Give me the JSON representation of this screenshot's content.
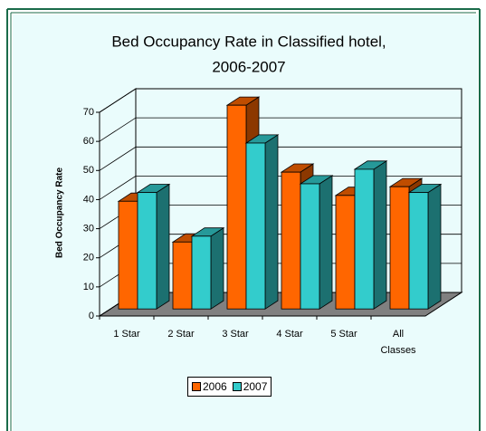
{
  "chart_data": {
    "type": "bar3d",
    "title": [
      "Bed Occupancy Rate in Classified hotel,",
      "2006-2007"
    ],
    "y_label": "Bed Occupancy Rate",
    "categories": [
      "1 Star",
      "2 Star",
      "3 Star",
      "4 Star",
      "5 Star",
      "All Classes"
    ],
    "series": [
      {
        "name": "2006",
        "color": "#ff6600",
        "values": [
          37,
          23,
          70,
          47,
          39,
          42
        ]
      },
      {
        "name": "2007",
        "color": "#33cccc",
        "values": [
          40,
          25,
          57,
          43,
          48,
          40
        ]
      }
    ],
    "ylim": [
      0,
      70
    ],
    "yticks": [
      0,
      10,
      20,
      30,
      40,
      50,
      60,
      70
    ],
    "grid": true,
    "legend": "bottom"
  }
}
